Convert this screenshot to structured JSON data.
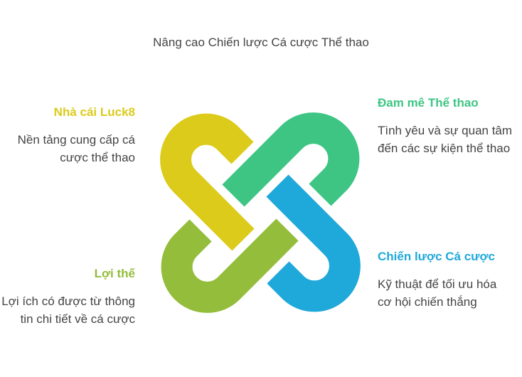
{
  "title": "Nâng cao Chiến lược Cá cược Thể thao",
  "items": [
    {
      "heading": "Nhà cái Luck8",
      "text": "Nền tảng cung cấp cá cược thể thao",
      "color": "#DCCB1A"
    },
    {
      "heading": "Đam mê Thể thao",
      "text": "Tình yêu và sự quan tâm đến các sự kiện thể thao",
      "color": "#3EC584"
    },
    {
      "heading": "Lợi thế",
      "text": "Lợi ích có được từ thông tin chi tiết về cá cược",
      "color": "#93BD3A"
    },
    {
      "heading": "Chiến lược Cá cược",
      "text": "Kỹ thuật để tối ưu hóa cơ hội chiến thắng",
      "color": "#1FA8DA"
    }
  ]
}
